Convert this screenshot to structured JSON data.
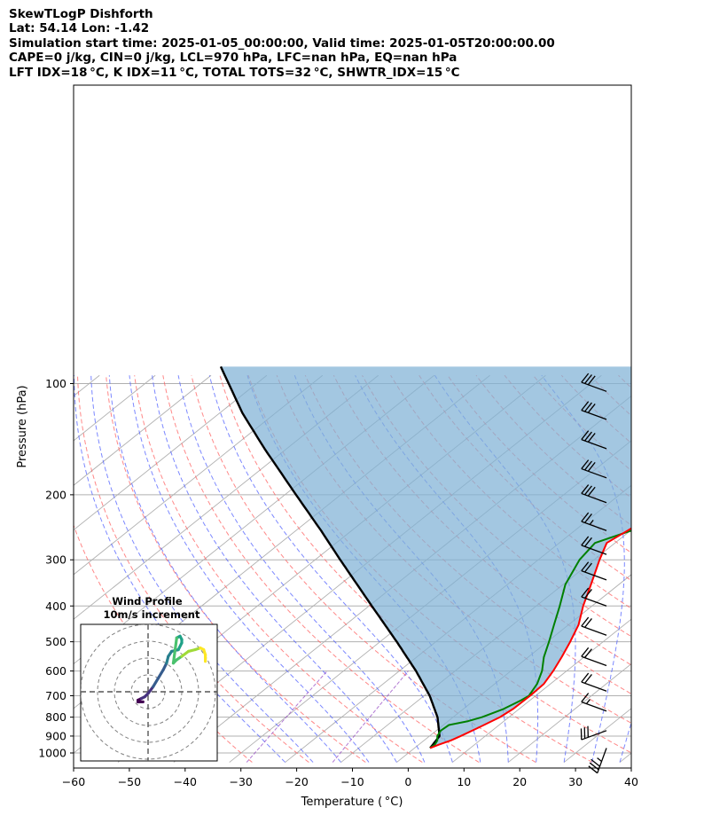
{
  "header": {
    "line1": "SkewTLogP Dishforth",
    "line2": "Lat: 54.14   Lon: -1.42",
    "line3": "Simulation start time: 2025-01-05_00:00:00, Valid time: 2025-01-05T20:00:00.00",
    "line4": "CAPE=0 j/kg, CIN=0 j/kg, LCL=970 hPa, LFC=nan hPa, EQ=nan hPa",
    "line5": "LFT IDX=18 °C, K IDX=11 °C, TOTAL TOTS=32 °C, SHWTR_IDX=15 °C"
  },
  "chart_data": {
    "type": "line",
    "subtype": "skew-t log-p",
    "xlabel": "Temperature ( °C)",
    "ylabel": "Pressure (hPa)",
    "xlim": [
      -60,
      40
    ],
    "ylim": [
      1050,
      100
    ],
    "y_scale": "log",
    "grid": true,
    "x_ticks": [
      -60,
      -50,
      -40,
      -30,
      -20,
      -10,
      0,
      10,
      20,
      30,
      40
    ],
    "y_ticks": [
      1000,
      900,
      800,
      700,
      600,
      500,
      400,
      300,
      200,
      100
    ],
    "colors": {
      "temperature": "#ff0000",
      "dewpoint": "#008000",
      "parcel": "#000000",
      "cin_fill": "#7fb1d5",
      "isotherm": "#b0b0b0",
      "dry_adiabat": "#ff6060",
      "moist_adiabat": "#5060ff",
      "mixing_ratio": "#9040c0"
    },
    "series": [
      {
        "key": "temperature",
        "p": [
          970,
          950,
          925,
          900,
          850,
          800,
          760,
          700,
          650,
          600,
          550,
          500,
          450,
          400,
          350,
          300,
          270,
          250,
          230,
          210,
          200,
          180,
          160,
          140,
          120,
          100
        ],
        "t": [
          2.8,
          3.6,
          4.8,
          5.6,
          7.0,
          8.4,
          8.9,
          9.0,
          8.8,
          7.6,
          6.0,
          4.1,
          1.8,
          -1.6,
          -5.0,
          -9.0,
          -11.5,
          -10.5,
          -9.6,
          -8.6,
          -8.0,
          -6.5,
          -4.0,
          -1.0,
          2.0,
          5.5
        ]
      },
      {
        "key": "dewpoint",
        "p": [
          970,
          950,
          925,
          900,
          870,
          840,
          820,
          800,
          760,
          720,
          700,
          650,
          600,
          550,
          500,
          450,
          400,
          350,
          300,
          270,
          250,
          230,
          210,
          200,
          180,
          160,
          140,
          120,
          100
        ],
        "t": [
          2.8,
          2.9,
          2.4,
          1.4,
          0.8,
          1.0,
          3.6,
          5.2,
          7.2,
          8.4,
          8.8,
          7.6,
          5.6,
          2.8,
          0.3,
          -2.6,
          -5.8,
          -9.6,
          -12.6,
          -13.6,
          -9.8,
          -11.0,
          -12.5,
          -11.2,
          -10.3,
          -9.6,
          -6.9,
          -3.9,
          0.5
        ]
      },
      {
        "key": "parcel",
        "p": [
          970,
          900,
          800,
          700,
          600,
          500,
          400,
          300,
          250,
          200,
          150,
          120,
          100
        ],
        "t": [
          2.8,
          1.8,
          -2.8,
          -9.0,
          -17.0,
          -27.0,
          -39.5,
          -55.5,
          -65.5,
          -78.0,
          -94.0,
          -106.0,
          -115.0
        ]
      }
    ],
    "wind_barbs": {
      "p": [
        105,
        125,
        150,
        180,
        210,
        250,
        290,
        340,
        400,
        480,
        580,
        680,
        770,
        870,
        970
      ],
      "speed_kt": [
        30,
        30,
        30,
        30,
        30,
        25,
        20,
        20,
        20,
        20,
        20,
        20,
        15,
        30,
        35
      ],
      "direction_deg": [
        290,
        290,
        290,
        290,
        290,
        290,
        290,
        290,
        290,
        290,
        290,
        290,
        290,
        250,
        200
      ]
    },
    "hodograph": {
      "title": "Wind Profile",
      "subtitle": "10m/s increment",
      "rings_mps": [
        10,
        20,
        30,
        40
      ],
      "u": [
        -3,
        -5,
        -6,
        -6,
        -4,
        -2,
        0,
        3,
        6,
        9,
        11,
        12,
        14,
        18,
        20,
        20,
        19,
        17,
        15,
        17,
        20,
        24,
        28,
        31,
        33,
        34,
        34
      ],
      "v": [
        -6,
        -6,
        -6,
        -5,
        -4,
        -3,
        -1,
        3,
        8,
        13,
        17,
        21,
        24,
        25,
        29,
        31,
        33,
        32,
        17,
        19,
        21,
        24,
        25,
        26,
        25,
        22,
        18
      ],
      "colormap": "viridis"
    }
  }
}
